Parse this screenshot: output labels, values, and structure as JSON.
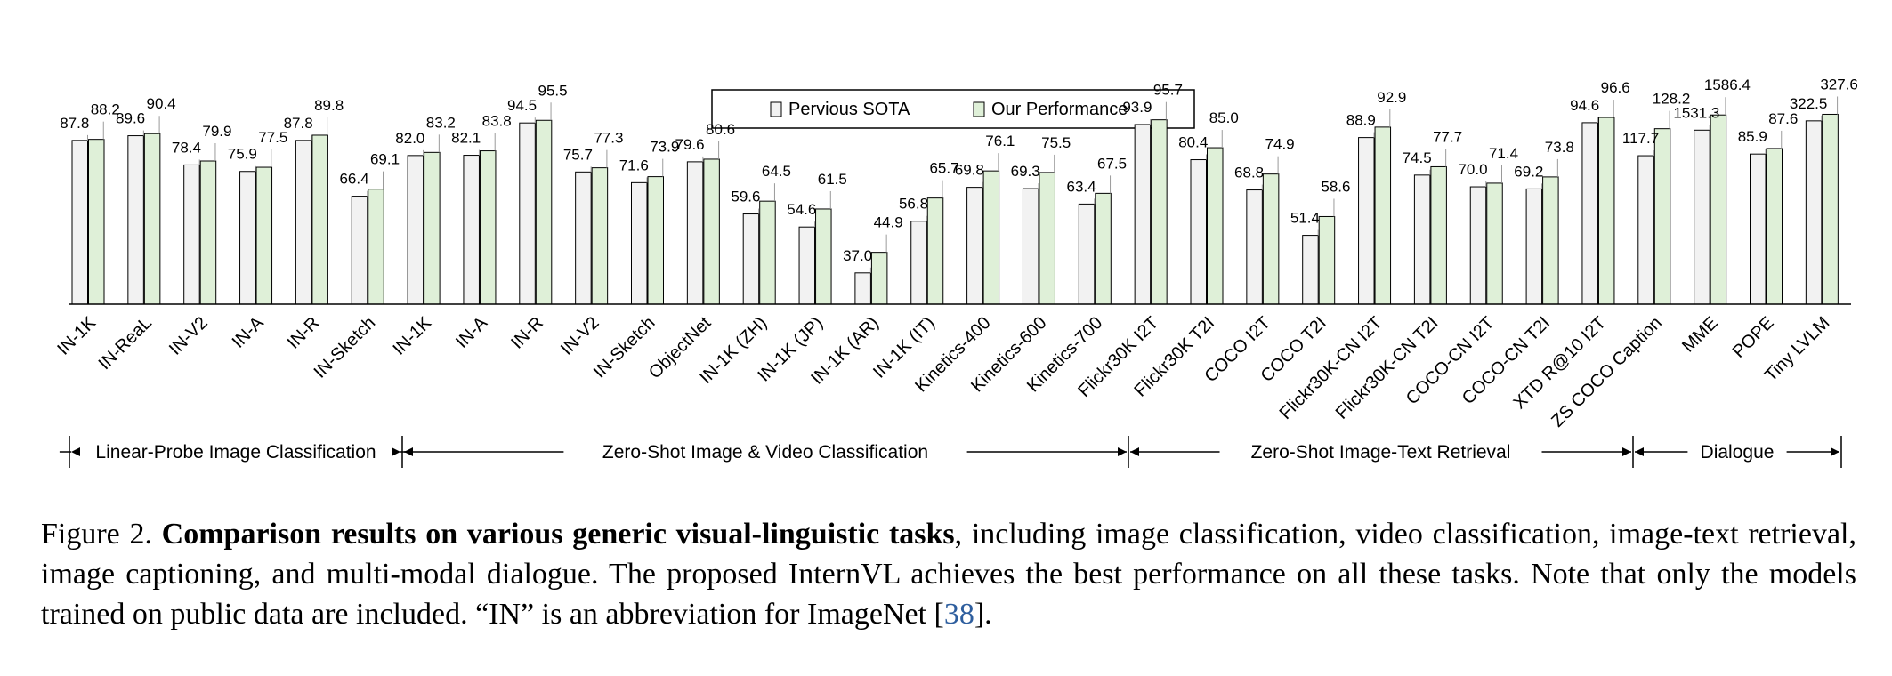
{
  "chart_data": {
    "type": "bar",
    "legend": {
      "position": "top-center",
      "entries": [
        {
          "name": "Pervious SOTA",
          "color": "#f2f2f2"
        },
        {
          "name": "Our Performance",
          "color": "#dff0d8"
        }
      ]
    },
    "categories": [
      "IN-1K",
      "IN-ReaL",
      "IN-V2",
      "IN-A",
      "IN-R",
      "IN-Sketch",
      "IN-1K",
      "IN-A",
      "IN-R",
      "IN-V2",
      "IN-Sketch",
      "ObjectNet",
      "IN-1K (ZH)",
      "IN-1K (JP)",
      "IN-1K (AR)",
      "IN-1K (IT)",
      "Kinetics-400",
      "Kinetics-600",
      "Kinetics-700",
      "Flickr30K I2T",
      "Flickr30K T2I",
      "COCO I2T",
      "COCO T2I",
      "Flickr30K-CN I2T",
      "Flickr30K-CN T2I",
      "COCO-CN I2T",
      "COCO-CN T2I",
      "XTD R@10 I2T",
      "ZS COCO Caption",
      "MME",
      "POPE",
      "Tiny LVLM"
    ],
    "series": [
      {
        "name": "Pervious SOTA",
        "values": [
          87.8,
          89.6,
          78.4,
          75.9,
          87.8,
          66.4,
          82.0,
          82.1,
          94.5,
          75.7,
          71.6,
          79.6,
          59.6,
          54.6,
          37.0,
          56.8,
          69.8,
          69.3,
          63.4,
          93.9,
          80.4,
          68.8,
          51.4,
          88.9,
          74.5,
          70.0,
          69.2,
          94.6,
          117.7,
          1531.3,
          85.9,
          322.5
        ]
      },
      {
        "name": "Our Performance",
        "values": [
          88.2,
          90.4,
          79.9,
          77.5,
          89.8,
          69.1,
          83.2,
          83.8,
          95.5,
          77.3,
          73.9,
          80.6,
          64.5,
          61.5,
          44.9,
          65.7,
          76.1,
          75.5,
          67.5,
          95.7,
          85.0,
          74.9,
          58.6,
          92.9,
          77.7,
          71.4,
          73.8,
          96.6,
          128.2,
          1586.4,
          87.6,
          327.6
        ]
      }
    ],
    "group_labels": [
      {
        "label": "Linear-Probe Image Classification",
        "from": 0,
        "to": 5
      },
      {
        "label": "Zero-Shot Image & Video Classification",
        "from": 6,
        "to": 18
      },
      {
        "label": "Zero-Shot Image-Text Retrieval",
        "from": 19,
        "to": 27
      },
      {
        "label": "Dialogue",
        "from": 28,
        "to": 31
      }
    ],
    "grid": false
  },
  "caption": {
    "prefix": "Figure 2. ",
    "bold": "Comparison results on various generic visual-linguistic tasks",
    "text": ", including image classification, video classification, image-text retrieval, image captioning, and multi-modal dialogue. The proposed InternVL achieves the best performance on all these tasks. Note that only the models trained on public data are included. “IN” is an abbreviation for ImageNet [",
    "ref": "38",
    "suffix": "]."
  }
}
